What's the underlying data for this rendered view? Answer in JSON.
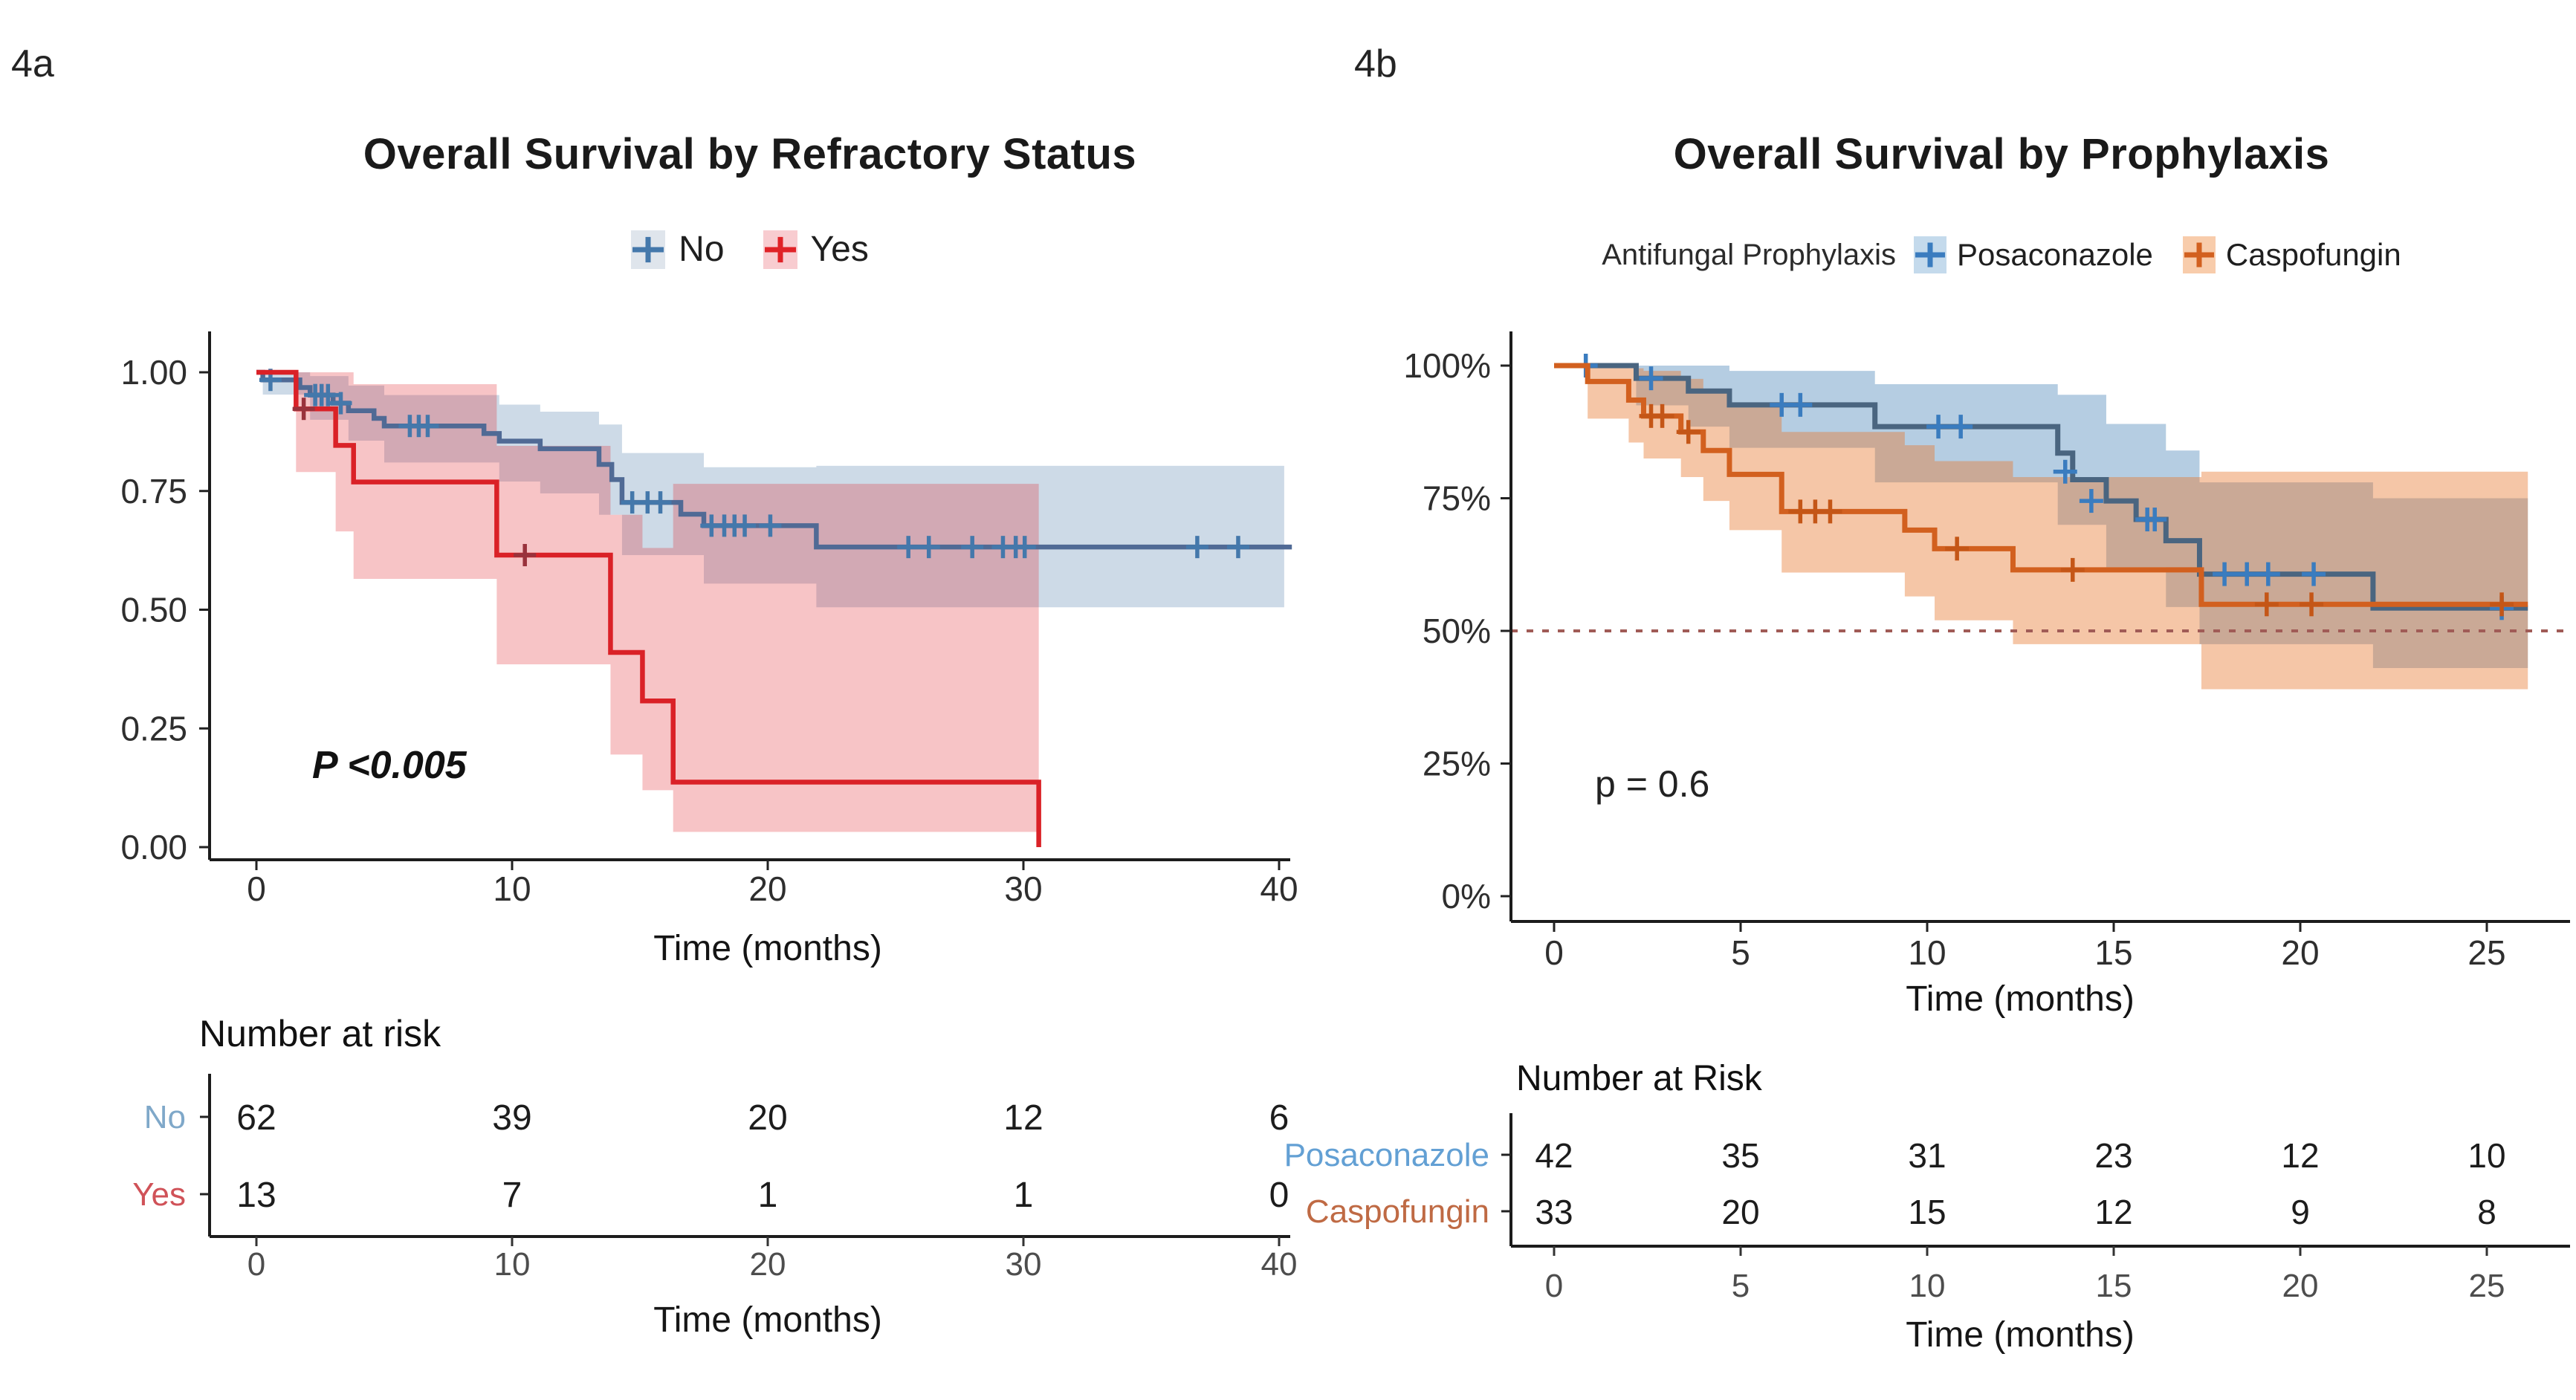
{
  "chart_data": [
    {
      "panel_label": "4a",
      "type": "line",
      "variant": "kaplan_meier_step",
      "title": "Overall Survival by Refractory Status",
      "xlabel": "Time (months)",
      "annotation": "P <0.005",
      "legend_title": "",
      "xlim": [
        0,
        40.5
      ],
      "ylim": [
        0,
        1
      ],
      "grid": false,
      "legend_position": "top",
      "x_ticks": [
        {
          "t": 0,
          "label": "0"
        },
        {
          "t": 10,
          "label": "10"
        },
        {
          "t": 20,
          "label": "20"
        },
        {
          "t": 30,
          "label": "30"
        },
        {
          "t": 40,
          "label": "40"
        }
      ],
      "y_ticks": [
        {
          "v": 1.0,
          "label": "1.00"
        },
        {
          "v": 0.75,
          "label": "0.75"
        },
        {
          "v": 0.5,
          "label": "0.50"
        },
        {
          "v": 0.25,
          "label": "0.25"
        },
        {
          "v": 0.0,
          "label": "0.00"
        }
      ],
      "series": [
        {
          "name": "No",
          "color": "#506a95",
          "censor_color": "#4478ab",
          "ci_color": "#4878a8",
          "ci_opacity": 0.27,
          "key_bg": "#dfe5ec",
          "key_color": "#4478ab",
          "t_end": 40.5,
          "steps": [
            [
              0,
              1.0
            ],
            [
              0.25,
              0.984
            ],
            [
              1.7,
              0.968
            ],
            [
              2.1,
              0.952
            ],
            [
              3.0,
              0.935
            ],
            [
              3.6,
              0.919
            ],
            [
              4.6,
              0.903
            ],
            [
              5.0,
              0.887
            ],
            [
              8.9,
              0.871
            ],
            [
              9.5,
              0.855
            ],
            [
              11.1,
              0.839
            ],
            [
              13.4,
              0.806
            ],
            [
              13.9,
              0.774
            ],
            [
              14.3,
              0.726
            ],
            [
              16.6,
              0.701
            ],
            [
              17.5,
              0.677
            ],
            [
              21.9,
              0.632
            ]
          ],
          "censors": [
            [
              0.55,
              0.984
            ],
            [
              2.3,
              0.952
            ],
            [
              2.55,
              0.952
            ],
            [
              2.8,
              0.952
            ],
            [
              3.3,
              0.935
            ],
            [
              6.0,
              0.887
            ],
            [
              6.35,
              0.887
            ],
            [
              6.7,
              0.887
            ],
            [
              14.7,
              0.726
            ],
            [
              15.3,
              0.726
            ],
            [
              15.8,
              0.726
            ],
            [
              17.8,
              0.677
            ],
            [
              18.3,
              0.677
            ],
            [
              18.7,
              0.677
            ],
            [
              19.1,
              0.677
            ],
            [
              20.1,
              0.677
            ],
            [
              25.5,
              0.632
            ],
            [
              26.3,
              0.632
            ],
            [
              28.0,
              0.632
            ],
            [
              29.2,
              0.632
            ],
            [
              29.7,
              0.632
            ],
            [
              30.05,
              0.632
            ],
            [
              36.8,
              0.632
            ],
            [
              38.4,
              0.632
            ]
          ],
          "ci": [
            [
              0.25,
              0.953,
              1.0
            ],
            [
              2.1,
              0.9,
              0.992
            ],
            [
              3.6,
              0.856,
              0.972
            ],
            [
              5.0,
              0.81,
              0.952
            ],
            [
              9.5,
              0.77,
              0.932
            ],
            [
              11.1,
              0.745,
              0.917
            ],
            [
              13.4,
              0.7,
              0.89
            ],
            [
              14.3,
              0.615,
              0.83
            ],
            [
              17.5,
              0.555,
              0.8
            ],
            [
              21.9,
              0.505,
              0.803
            ],
            [
              40.2,
              0.505,
              0.803
            ]
          ]
        },
        {
          "name": "Yes",
          "color": "#da2127",
          "censor_color": "#99323c",
          "ci_color": "#e3242b",
          "ci_opacity": 0.27,
          "key_bg": "#f8ccd0",
          "key_color": "#e02227",
          "t_end": 30.6,
          "steps": [
            [
              0,
              1.0
            ],
            [
              1.55,
              0.923
            ],
            [
              3.1,
              0.846
            ],
            [
              3.8,
              0.769
            ],
            [
              9.4,
              0.615
            ],
            [
              13.85,
              0.41
            ],
            [
              15.1,
              0.308
            ],
            [
              16.3,
              0.137
            ],
            [
              30.6,
              0.0
            ]
          ],
          "censors": [
            [
              1.85,
              0.923
            ],
            [
              10.5,
              0.615
            ]
          ],
          "ci": [
            [
              1.55,
              0.79,
              1.0
            ],
            [
              3.1,
              0.665,
              1.0
            ],
            [
              3.8,
              0.565,
              0.975
            ],
            [
              9.4,
              0.385,
              0.845
            ],
            [
              13.85,
              0.195,
              0.7
            ],
            [
              15.1,
              0.12,
              0.63
            ],
            [
              16.3,
              0.032,
              0.765
            ],
            [
              30.6,
              0.032,
              0.765
            ]
          ]
        }
      ],
      "risk_table": {
        "heading": "Number at risk",
        "time_points": [
          0,
          10,
          20,
          30,
          40
        ],
        "xlabel": "Time (months)",
        "rows": [
          {
            "label": "No",
            "color": "#7fa8c9",
            "counts": [
              62,
              39,
              20,
              12,
              6
            ]
          },
          {
            "label": "Yes",
            "color": "#d05258",
            "counts": [
              13,
              7,
              1,
              1,
              0
            ]
          }
        ]
      }
    },
    {
      "panel_label": "4b",
      "type": "line",
      "variant": "kaplan_meier_step",
      "title": "Overall Survival by Prophylaxis",
      "xlabel": "Time (months)",
      "annotation": "p = 0.6",
      "legend_title": "Antifungal Prophylaxis",
      "xlim": [
        0,
        26.5
      ],
      "ylim": [
        0,
        1
      ],
      "grid": false,
      "legend_position": "top",
      "ref_line": 0.5,
      "ref_line_color": "#a05b56",
      "x_ticks": [
        {
          "t": 0,
          "label": "0"
        },
        {
          "t": 5,
          "label": "5"
        },
        {
          "t": 10,
          "label": "10"
        },
        {
          "t": 15,
          "label": "15"
        },
        {
          "t": 20,
          "label": "20"
        },
        {
          "t": 25,
          "label": "25"
        }
      ],
      "y_ticks": [
        {
          "v": 1.0,
          "label": "100%"
        },
        {
          "v": 0.75,
          "label": "75%"
        },
        {
          "v": 0.5,
          "label": "50%"
        },
        {
          "v": 0.25,
          "label": "25%"
        },
        {
          "v": 0.0,
          "label": "0%"
        }
      ],
      "series": [
        {
          "name": "Posaconazole",
          "color": "#4a6580",
          "censor_color": "#3a7cbf",
          "ci_color": "#4e87ba",
          "ci_opacity": 0.42,
          "key_bg": "#c4daec",
          "key_color": "#3a7cbf",
          "t_end": 26.1,
          "steps": [
            [
              0,
              1.0
            ],
            [
              2.2,
              0.976
            ],
            [
              3.6,
              0.952
            ],
            [
              4.7,
              0.926
            ],
            [
              8.6,
              0.885
            ],
            [
              13.5,
              0.835
            ],
            [
              13.9,
              0.785
            ],
            [
              14.8,
              0.745
            ],
            [
              15.6,
              0.71
            ],
            [
              16.4,
              0.67
            ],
            [
              17.3,
              0.607
            ],
            [
              21.95,
              0.543
            ]
          ],
          "censors": [
            [
              0.85,
              1.0
            ],
            [
              2.6,
              0.976
            ],
            [
              6.1,
              0.926
            ],
            [
              6.6,
              0.926
            ],
            [
              10.3,
              0.885
            ],
            [
              10.9,
              0.885
            ],
            [
              13.7,
              0.8
            ],
            [
              14.4,
              0.745
            ],
            [
              15.9,
              0.71
            ],
            [
              16.1,
              0.71
            ],
            [
              17.97,
              0.607
            ],
            [
              18.57,
              0.607
            ],
            [
              19.14,
              0.607
            ],
            [
              20.36,
              0.607
            ],
            [
              25.4,
              0.543
            ]
          ],
          "ci": [
            [
              2.2,
              0.925,
              1.0
            ],
            [
              3.6,
              0.885,
              1.0
            ],
            [
              4.7,
              0.845,
              0.99
            ],
            [
              8.6,
              0.78,
              0.965
            ],
            [
              13.5,
              0.7,
              0.945
            ],
            [
              14.8,
              0.62,
              0.89
            ],
            [
              16.4,
              0.545,
              0.84
            ],
            [
              17.3,
              0.475,
              0.78
            ],
            [
              21.95,
              0.43,
              0.75
            ],
            [
              26.1,
              0.42,
              0.74
            ]
          ]
        },
        {
          "name": "Caspofungin",
          "color": "#d2601f",
          "censor_color": "#c45617",
          "ci_color": "#e8772e",
          "ci_opacity": 0.42,
          "key_bg": "#f8ccab",
          "key_color": "#d2601f",
          "t_end": 26.1,
          "steps": [
            [
              0,
              1.0
            ],
            [
              0.9,
              0.97
            ],
            [
              2.0,
              0.935
            ],
            [
              2.4,
              0.905
            ],
            [
              3.4,
              0.875
            ],
            [
              4.0,
              0.84
            ],
            [
              4.7,
              0.795
            ],
            [
              6.1,
              0.725
            ],
            [
              9.4,
              0.69
            ],
            [
              10.2,
              0.655
            ],
            [
              12.3,
              0.615
            ],
            [
              17.35,
              0.55
            ]
          ],
          "censors": [
            [
              2.6,
              0.905
            ],
            [
              2.9,
              0.905
            ],
            [
              3.6,
              0.875
            ],
            [
              6.6,
              0.725
            ],
            [
              7.0,
              0.725
            ],
            [
              7.4,
              0.725
            ],
            [
              10.8,
              0.655
            ],
            [
              13.9,
              0.615
            ],
            [
              19.1,
              0.55
            ],
            [
              20.3,
              0.55
            ],
            [
              25.4,
              0.55
            ]
          ],
          "ci": [
            [
              0.9,
              0.9,
              1.0
            ],
            [
              2.0,
              0.855,
              0.995
            ],
            [
              2.4,
              0.825,
              0.99
            ],
            [
              3.4,
              0.79,
              0.975
            ],
            [
              4.0,
              0.745,
              0.955
            ],
            [
              4.7,
              0.69,
              0.925
            ],
            [
              6.1,
              0.61,
              0.875
            ],
            [
              9.4,
              0.565,
              0.85
            ],
            [
              10.2,
              0.52,
              0.82
            ],
            [
              12.3,
              0.475,
              0.79
            ],
            [
              17.35,
              0.39,
              0.8
            ],
            [
              26.1,
              0.39,
              0.8
            ]
          ]
        }
      ],
      "risk_table": {
        "heading": "Number at Risk",
        "time_points": [
          0,
          5,
          10,
          15,
          20,
          25
        ],
        "xlabel": "Time (months)",
        "rows": [
          {
            "label": "Posaconazole",
            "color": "#63a0d4",
            "counts": [
              42,
              35,
              31,
              23,
              12,
              10
            ]
          },
          {
            "label": "Caspofungin",
            "color": "#bf6a44",
            "counts": [
              33,
              20,
              15,
              12,
              9,
              8
            ]
          }
        ]
      }
    }
  ]
}
